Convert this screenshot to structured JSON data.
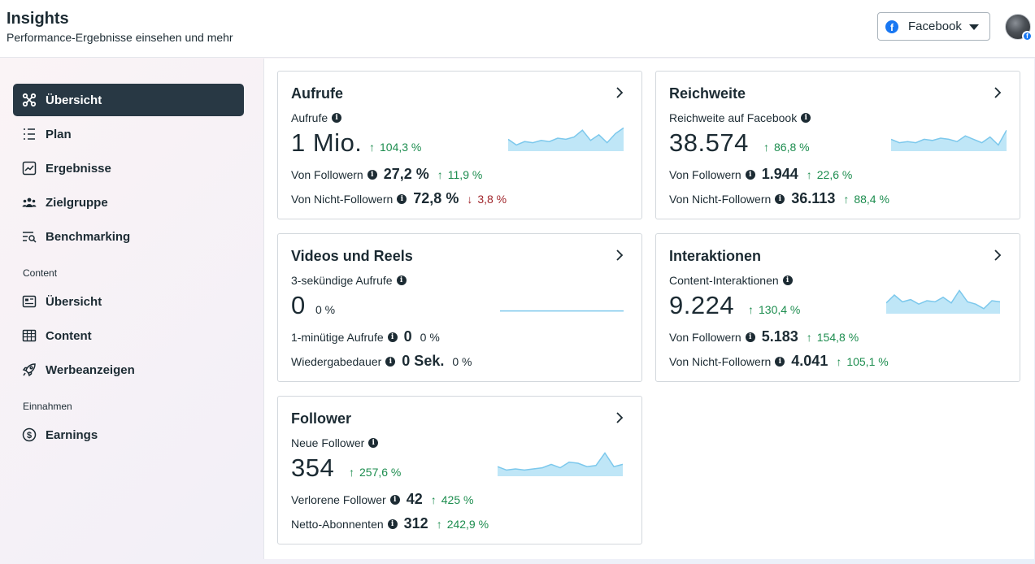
{
  "header": {
    "title": "Insights",
    "subtitle": "Performance-Ergebnisse einsehen und mehr",
    "platform": "Facebook"
  },
  "sidebar": {
    "items": [
      {
        "label": "Übersicht",
        "icon": "overview-icon",
        "active": true
      },
      {
        "label": "Plan",
        "icon": "list-icon"
      },
      {
        "label": "Ergebnisse",
        "icon": "chart-line-icon"
      },
      {
        "label": "Zielgruppe",
        "icon": "audience-icon"
      },
      {
        "label": "Benchmarking",
        "icon": "benchmark-icon"
      }
    ],
    "section_content": "Content",
    "content_items": [
      {
        "label": "Übersicht",
        "icon": "card-icon"
      },
      {
        "label": "Content",
        "icon": "table-icon"
      },
      {
        "label": "Werbeanzeigen",
        "icon": "rocket-icon"
      }
    ],
    "section_income": "Einnahmen",
    "income_items": [
      {
        "label": "Earnings",
        "icon": "dollar-icon"
      }
    ]
  },
  "cards": {
    "aufrufe": {
      "title": "Aufrufe",
      "metric_label": "Aufrufe",
      "value": "1 Mio.",
      "change": "104,3 %",
      "rows": [
        {
          "label": "Von Followern",
          "value": "27,2 %",
          "change": "11,9 %",
          "dir": "up"
        },
        {
          "label": "Von Nicht-Followern",
          "value": "72,8 %",
          "change": "3,8 %",
          "dir": "down"
        }
      ],
      "spark": [
        0.45,
        0.2,
        0.35,
        0.3,
        0.4,
        0.35,
        0.5,
        0.45,
        0.55,
        0.85,
        0.4,
        0.65,
        0.3,
        0.7,
        0.95
      ]
    },
    "reichweite": {
      "title": "Reichweite",
      "metric_label": "Reichweite auf Facebook",
      "value": "38.574",
      "change": "86,8 %",
      "rows": [
        {
          "label": "Von Followern",
          "value": "1.944",
          "change": "22,6 %",
          "dir": "up"
        },
        {
          "label": "Von Nicht-Followern",
          "value": "36.113",
          "change": "88,4 %",
          "dir": "up"
        }
      ],
      "spark": [
        0.45,
        0.3,
        0.35,
        0.3,
        0.45,
        0.4,
        0.5,
        0.45,
        0.35,
        0.6,
        0.45,
        0.3,
        0.55,
        0.2,
        0.85
      ]
    },
    "videos": {
      "title": "Videos und Reels",
      "metric_label": "3-sekündige Aufrufe",
      "value": "0",
      "change": "0 %",
      "rows": [
        {
          "label": "1-minütige Aufrufe",
          "value": "0",
          "change": "0 %",
          "dir": "neutral"
        },
        {
          "label": "Wiedergabedauer",
          "value": "0 Sek.",
          "change": "0 %",
          "dir": "neutral"
        }
      ],
      "spark": [
        0.05,
        0.05,
        0.05,
        0.05,
        0.05,
        0.05,
        0.05,
        0.05,
        0.05,
        0.05,
        0.05,
        0.05,
        0.05,
        0.05,
        0.05
      ]
    },
    "interaktionen": {
      "title": "Interaktionen",
      "metric_label": "Content-Interaktionen",
      "value": "9.224",
      "change": "130,4 %",
      "rows": [
        {
          "label": "Von Followern",
          "value": "5.183",
          "change": "154,8 %",
          "dir": "up"
        },
        {
          "label": "Von Nicht-Followern",
          "value": "4.041",
          "change": "105,1 %",
          "dir": "up"
        }
      ],
      "spark": [
        0.4,
        0.75,
        0.45,
        0.55,
        0.35,
        0.5,
        0.45,
        0.65,
        0.4,
        0.95,
        0.45,
        0.35,
        0.15,
        0.5,
        0.45
      ]
    },
    "follower": {
      "title": "Follower",
      "metric_label": "Neue Follower",
      "value": "354",
      "change": "257,6 %",
      "rows": [
        {
          "label": "Verlorene Follower",
          "value": "42",
          "change": "425 %",
          "dir": "up"
        },
        {
          "label": "Netto-Abonnenten",
          "value": "312",
          "change": "242,9 %",
          "dir": "up"
        }
      ],
      "spark": [
        0.35,
        0.2,
        0.25,
        0.2,
        0.25,
        0.3,
        0.45,
        0.3,
        0.55,
        0.5,
        0.35,
        0.4,
        0.95,
        0.35,
        0.45
      ]
    }
  }
}
